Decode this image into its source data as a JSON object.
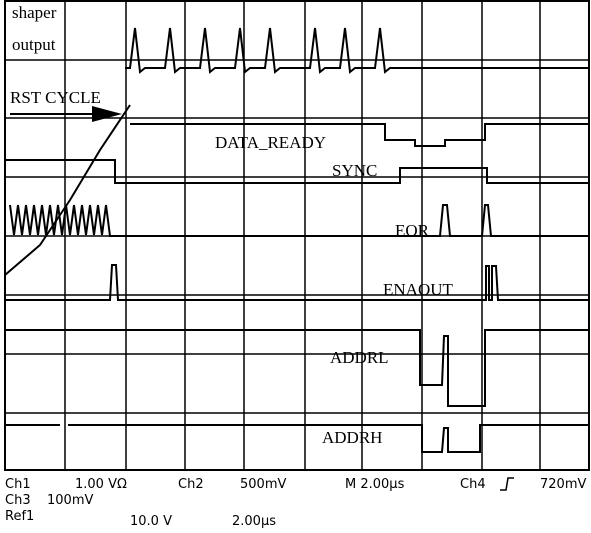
{
  "traces": {
    "shaper": [
      "shaper",
      "output"
    ],
    "rst": "RST CYCLE",
    "data_ready": "DATA_READY",
    "sync": "SYNC",
    "eor": "EOR",
    "enaout": "ENAOUT",
    "addrl": "ADDRL",
    "addrh": "ADDRH"
  },
  "status": {
    "row1": [
      "Ch1",
      "1.00 VΩ",
      "Ch2",
      "500mV",
      "M 2.00µs",
      "Ch4",
      "720mV"
    ],
    "row2": [
      "Ch3",
      "100mV"
    ],
    "row3": [
      "Ref1",
      "10.0 V",
      "2.00µs"
    ]
  }
}
